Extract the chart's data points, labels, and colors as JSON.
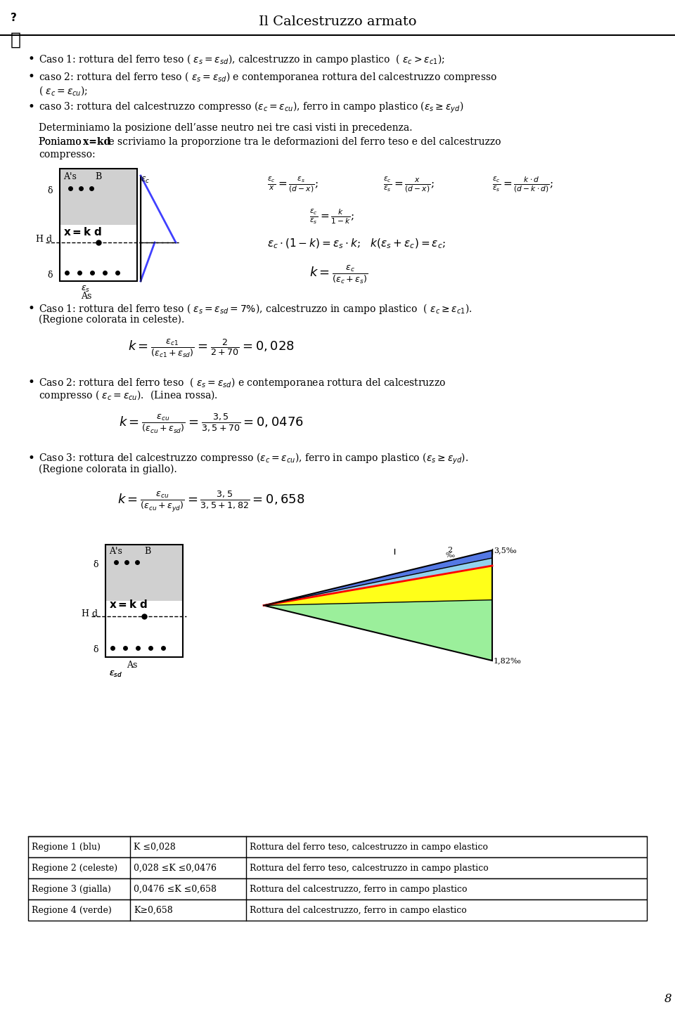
{
  "title": "Il Calcestruzzo armato",
  "bg_color": "#ffffff",
  "text_color": "#000000",
  "page_number": "8",
  "bullet1": "Caso 1: rottura del ferro teso ( $\\varepsilon_s = \\varepsilon_{sd}$), calcestruzzo in campo plastico  ( $\\varepsilon_c > \\varepsilon_{c1}$);",
  "bullet2_line1": "caso 2: rottura del ferro teso ( $\\varepsilon_s = \\varepsilon_{sd}$) e contemporanea rottura del calcestruzzo compresso",
  "bullet2_line2": "( $\\varepsilon_c = \\varepsilon_{cu}$);",
  "bullet3": "caso 3: rottura del calcestruzzo compresso ($\\varepsilon_c = \\varepsilon_{cu}$), ferro in campo plastico ($\\varepsilon_s \\geq \\varepsilon_{yd}$)",
  "para1": "Determiniamo la posizione dell’asse neutro nei tre casi visti in precedenza.",
  "para2_bold": "x=kd",
  "para2_rest": " e scriviamo la proporzione tra le deformazioni del ferro teso e del calcestruzzo compresso:",
  "formula_row1_a": "$\\frac{\\varepsilon_c}{x} = \\frac{\\varepsilon_s}{(d-x)}$;",
  "formula_row1_b": "$\\frac{\\varepsilon_c}{\\varepsilon_s} = \\frac{x}{(d-x)}$;",
  "formula_row1_c": "$\\frac{\\varepsilon_c}{\\varepsilon_s} = \\frac{k\\cdot d}{(d-k\\cdot d)}$;",
  "formula_row2": "$\\frac{\\varepsilon_c}{\\varepsilon_s} = \\frac{k}{1-k}$;",
  "formula_row3": "$\\varepsilon_c \\cdot (1-k) = \\varepsilon_s \\cdot k$;   $k(\\varepsilon_s + \\varepsilon_c) = \\varepsilon_c$;",
  "formula_row4": "$k = \\frac{\\varepsilon_c}{(\\varepsilon_c + \\varepsilon_s)}$",
  "caso1_bullet": "Caso 1: rottura del ferro teso ( $\\varepsilon_s = \\varepsilon_{sd} = 7\\%$), calcestruzzo in campo plastico  ( $\\varepsilon_c \\geq \\varepsilon_{c1}$). (Regione colorata in celeste).",
  "caso1_formula": "$k = \\frac{\\varepsilon_{c1}}{(\\varepsilon_{c1} + \\varepsilon_{sd})} = \\frac{2}{2+70} = 0,028$",
  "caso2_bullet_line1": "Caso 2: rottura del ferro teso  ( $\\varepsilon_s = \\varepsilon_{sd}$) e contemporanea rottura del calcestruzzo",
  "caso2_bullet_line2": "compresso ( $\\varepsilon_c = \\varepsilon_{cu}$).  (Linea rossa).",
  "caso2_formula": "$k = \\frac{\\varepsilon_{cu}}{(\\varepsilon_{cu} + \\varepsilon_{sd})} = \\frac{3,5}{3,5+70} = 0,0476$",
  "caso3_bullet_line1": "Caso 3: rottura del calcestruzzo compresso ($\\varepsilon_c = \\varepsilon_{cu}$), ferro in campo plastico ($\\varepsilon_s \\geq \\varepsilon_{yd}$).",
  "caso3_bullet_line2": "(Regione colorata in giallo).",
  "caso3_formula": "$k = \\frac{\\varepsilon_{cu}}{(\\varepsilon_{cu} + \\varepsilon_{yd})} = \\frac{3,5}{3,5+1,82} = 0,658$",
  "table_rows": [
    [
      "Regione 1 (blu)",
      "K ≤0,028",
      "Rottura del ferro teso, calcestruzzo in campo elastico"
    ],
    [
      "Regione 2 (celeste)",
      "0,028 ≤K ≤0,0476",
      "Rottura del ferro teso, calcestruzzo in campo plastico"
    ],
    [
      "Regione 3 (gialla)",
      "0,0476 ≤K ≤0,658",
      "Rottura del calcestruzzo, ferro in campo plastico"
    ],
    [
      "Regione 4 (verde)",
      "K≥0,658",
      "Rottura del calcestruzzo, ferro in campo elastico"
    ]
  ],
  "color_blue": "#4040cc",
  "color_celeste": "#87ceeb",
  "color_gialla": "#ffff00",
  "color_verde": "#00aa00",
  "color_rossa": "#cc0000"
}
